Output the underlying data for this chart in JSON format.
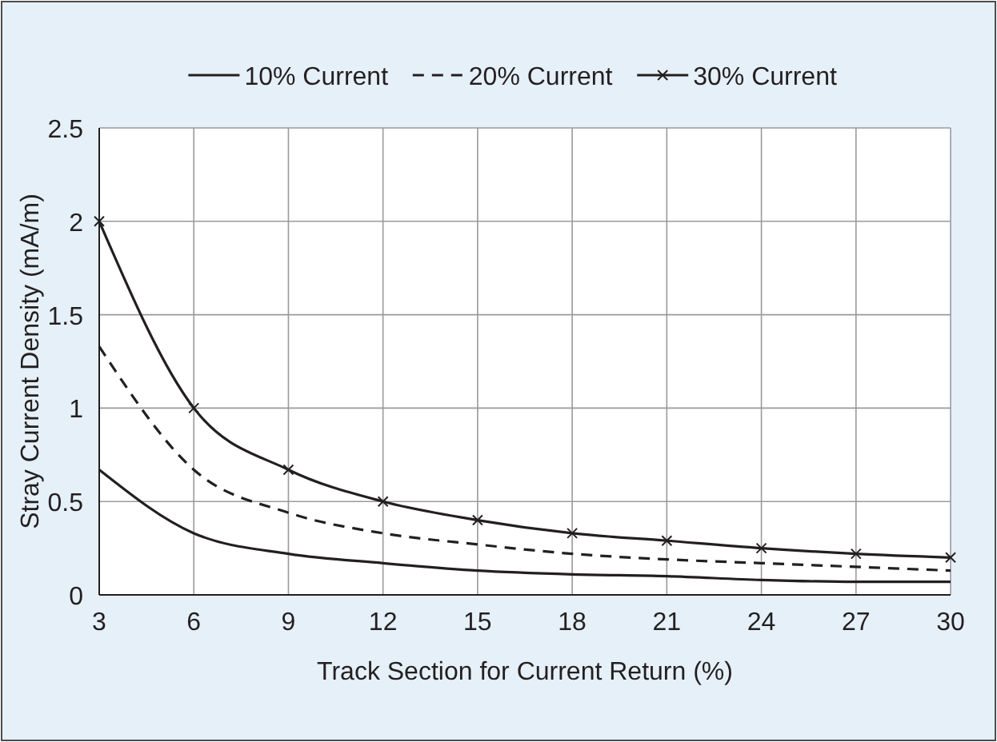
{
  "chart_data": {
    "type": "line",
    "xlabel": "Track Section for Current Return (%)",
    "ylabel": "Stray Current Density (mA/m)",
    "x": [
      3,
      6,
      9,
      12,
      15,
      18,
      21,
      24,
      27,
      30
    ],
    "series": [
      {
        "name": "10% Current",
        "color": "#231f20",
        "line_style": "solid",
        "marker": "none",
        "values": [
          0.67,
          0.33,
          0.22,
          0.17,
          0.13,
          0.11,
          0.1,
          0.08,
          0.07,
          0.07
        ]
      },
      {
        "name": "20% Current",
        "color": "#231f20",
        "line_style": "dashed",
        "marker": "none",
        "values": [
          1.33,
          0.67,
          0.44,
          0.33,
          0.27,
          0.22,
          0.19,
          0.17,
          0.15,
          0.13
        ]
      },
      {
        "name": "30% Current",
        "color": "#231f20",
        "line_style": "solid",
        "marker": "cross",
        "values": [
          2,
          1,
          0.67,
          0.5,
          0.4,
          0.33,
          0.29,
          0.25,
          0.22,
          0.2
        ]
      }
    ],
    "xlim": [
      3,
      30
    ],
    "xticks": [
      3,
      6,
      9,
      12,
      15,
      18,
      21,
      24,
      27,
      30
    ],
    "ylim": [
      0,
      2.5
    ],
    "yticks": [
      0,
      0.5,
      1,
      1.5,
      2,
      2.5
    ],
    "grid": true,
    "legend": "top"
  }
}
